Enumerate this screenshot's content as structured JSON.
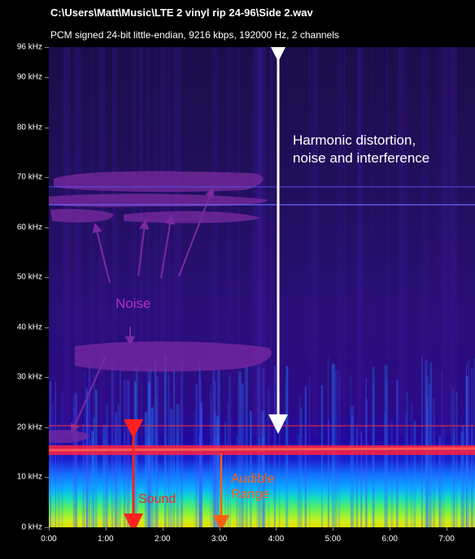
{
  "window": {
    "title": "C:\\Users\\Matt\\Music\\LTE 2 vinyl rip 24-96\\Side 2.wav",
    "info": "PCM signed 24-bit little-endian, 9216 kbps, 192000 Hz, 2 channels"
  },
  "axes": {
    "y_labels": [
      "96 kHz",
      "90 kHz",
      "80 kHz",
      "70 kHz",
      "60 kHz",
      "50 kHz",
      "40 kHz",
      "30 kHz",
      "20 kHz",
      "10 kHz",
      "0 kHz"
    ],
    "y_values": [
      96,
      90,
      80,
      70,
      60,
      50,
      40,
      30,
      20,
      10,
      0
    ],
    "x_labels": [
      "0:00",
      "1:00",
      "2:00",
      "3:00",
      "4:00",
      "5:00",
      "6:00",
      "7:00"
    ],
    "x_values": [
      0,
      60,
      120,
      180,
      240,
      300,
      360,
      420
    ],
    "x_max_seconds": 450,
    "y_max_khz": 96
  },
  "annotations": {
    "harmonic": "Harmonic distortion,\nnoise and interference",
    "noise": "Noise",
    "sound": "Sound",
    "audible": "Audible\nRange"
  },
  "colors": {
    "annotation_white": "#ffffff",
    "noise_purple": "#b030c8",
    "sound_red": "#ff2020",
    "audible_orange": "#ff6010",
    "band_line": "#ff3030"
  }
}
